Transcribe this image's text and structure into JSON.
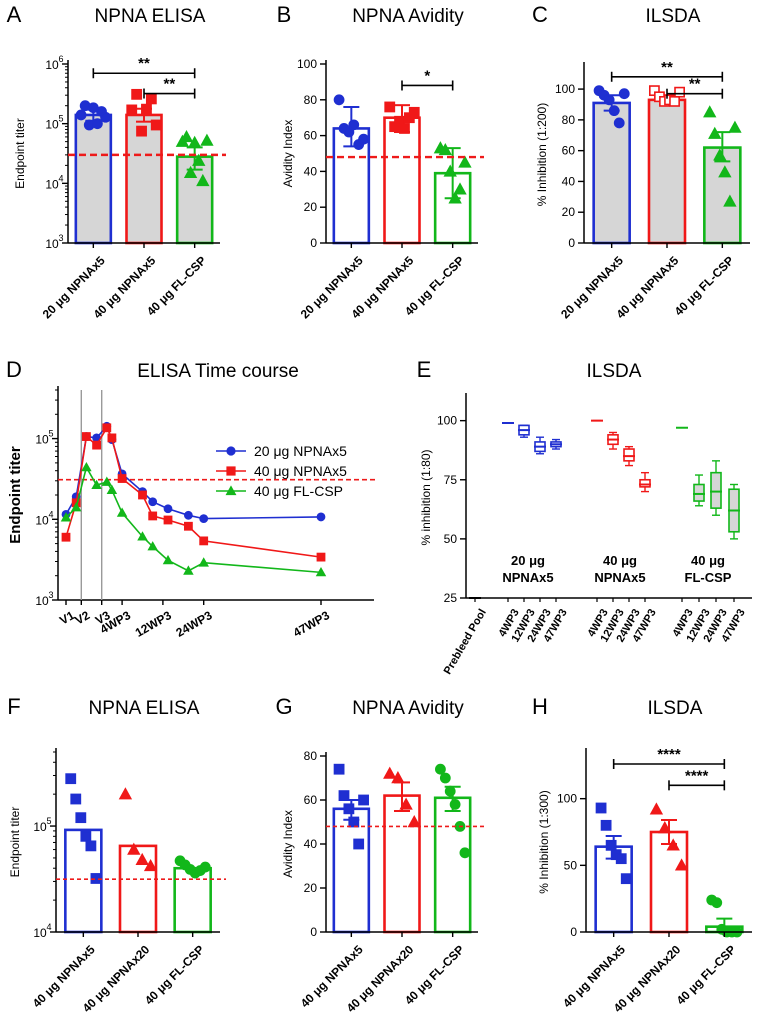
{
  "colors": {
    "blue": "#1f2fd1",
    "red": "#f01818",
    "green": "#12b71a",
    "gray": "#d6d6d6",
    "dash": "#ee1a1a",
    "vline": "#9a9a9a"
  },
  "chart_data": [
    {
      "panel_letter": "A",
      "title": "NPNA ELISA",
      "type": "bar",
      "scale": "log",
      "ylabel": "Endpoint titer",
      "ylim": [
        1000,
        1000000
      ],
      "tick_labels": [
        {
          "v": 1000,
          "b": "10",
          "e": "3"
        },
        {
          "v": 10000,
          "b": "10",
          "e": "4"
        },
        {
          "v": 100000,
          "b": "10",
          "e": "5"
        },
        {
          "v": 1000000,
          "b": "10",
          "e": "6"
        }
      ],
      "categories": [
        "20 μg NPNAx5",
        "40 μg NPNAx5",
        "40 μg FL-CSP"
      ],
      "series": [
        {
          "name": "20 μg NPNAx5",
          "color": "blue",
          "marker": "circle",
          "filled": true,
          "bar_fill": "gray",
          "value": 140000,
          "err": [
            112000,
            172000
          ],
          "points": [
            140000,
            200000,
            95000,
            185000,
            100000,
            160000,
            128000
          ]
        },
        {
          "name": "40 μg NPNAx5",
          "color": "red",
          "marker": "square",
          "filled": true,
          "bar_fill": "gray",
          "value": 140000,
          "err": [
            108000,
            178000
          ],
          "points": [
            170000,
            310000,
            75000,
            175000,
            260000,
            95000
          ]
        },
        {
          "name": "40 μg FL-CSP",
          "color": "green",
          "marker": "triangle",
          "filled": true,
          "bar_fill": "gray",
          "value": 28000,
          "err": [
            17000,
            40000
          ],
          "points": [
            50000,
            60000,
            15000,
            48000,
            24000,
            11000,
            52000
          ]
        }
      ],
      "reference_line": 30000,
      "significance": [
        {
          "from": 0,
          "to": 2,
          "label": "**",
          "y": 700000
        },
        {
          "from": 1,
          "to": 2,
          "label": "**",
          "y": 320000
        }
      ]
    },
    {
      "panel_letter": "B",
      "title": "NPNA Avidity",
      "type": "bar",
      "scale": "linear",
      "ylabel": "Avidity Index",
      "ylim": [
        0,
        100
      ],
      "yticks": [
        0,
        20,
        40,
        60,
        80,
        100
      ],
      "categories": [
        "20 μg NPNAx5",
        "40 μg NPNAx5",
        "40 μg FL-CSP"
      ],
      "series": [
        {
          "name": "20 μg NPNAx5",
          "color": "blue",
          "marker": "circle",
          "filled": true,
          "bar_fill": "white",
          "value": 64,
          "err": [
            54,
            76
          ],
          "points": [
            80,
            64,
            62,
            66,
            55,
            58
          ]
        },
        {
          "name": "40 μg NPNAx5",
          "color": "red",
          "marker": "square",
          "filled": true,
          "bar_fill": "white",
          "value": 70,
          "err": [
            62,
            77
          ],
          "points": [
            76,
            65,
            68,
            64,
            70,
            73
          ]
        },
        {
          "name": "40 μg FL-CSP",
          "color": "green",
          "marker": "triangle",
          "filled": true,
          "bar_fill": "white",
          "value": 39,
          "err": [
            25,
            53
          ],
          "points": [
            53,
            52,
            40,
            25,
            30,
            45
          ]
        }
      ],
      "reference_line": 48,
      "significance": [
        {
          "from": 1,
          "to": 2,
          "label": "*",
          "y": 88
        }
      ]
    },
    {
      "panel_letter": "C",
      "title": "ILSDA",
      "type": "bar",
      "scale": "linear",
      "ylabel": "% Inhibition (1:200)",
      "ylim": [
        0,
        115
      ],
      "yticks": [
        0,
        20,
        40,
        60,
        80,
        100
      ],
      "categories": [
        "20 μg NPNAx5",
        "40 μg NPNAx5",
        "40 μg FL-CSP"
      ],
      "series": [
        {
          "name": "20 μg NPNAx5",
          "color": "blue",
          "marker": "circle",
          "filled": true,
          "bar_fill": "gray",
          "value": 91,
          "err": [
            86,
            96
          ],
          "points": [
            99,
            96,
            93,
            86,
            78,
            97
          ]
        },
        {
          "name": "40 μg NPNAx5",
          "color": "red",
          "marker": "square",
          "filled": false,
          "bar_fill": "gray",
          "value": 93,
          "err": [
            90,
            96
          ],
          "points": [
            99,
            95,
            92,
            93,
            92,
            98
          ]
        },
        {
          "name": "40 μg FL-CSP",
          "color": "green",
          "marker": "triangle",
          "filled": true,
          "bar_fill": "gray",
          "value": 62,
          "err": [
            53,
            72
          ],
          "points": [
            85,
            71,
            57,
            46,
            27,
            75
          ]
        }
      ],
      "significance": [
        {
          "from": 0,
          "to": 2,
          "label": "**",
          "y": 108
        },
        {
          "from": 1,
          "to": 2,
          "label": "**",
          "y": 97
        }
      ]
    },
    {
      "panel_letter": "D",
      "title": "ELISA Time course",
      "type": "line",
      "scale": "log",
      "ylabel": "Endpoint titer",
      "ylim": [
        1000,
        400000
      ],
      "tick_labels": [
        {
          "v": 1000,
          "b": "10",
          "e": "3"
        },
        {
          "v": 10000,
          "b": "10",
          "e": "4"
        },
        {
          "v": 100000,
          "b": "10",
          "e": "5"
        }
      ],
      "xlim": [
        0,
        60
      ],
      "xticks": [
        {
          "x": 0,
          "label": "V1"
        },
        {
          "x": 3,
          "label": "V2"
        },
        {
          "x": 7,
          "label": "V3"
        },
        {
          "x": 11,
          "label": "4WP3"
        },
        {
          "x": 19,
          "label": "12WP3"
        },
        {
          "x": 27,
          "label": "24WP3"
        },
        {
          "x": 50,
          "label": "47WP3"
        }
      ],
      "vlines": [
        3,
        7
      ],
      "reference_line": 31000,
      "legend": [
        "20 μg NPNAx5",
        "40 μg NPNAx5",
        "40 μg FL-CSP"
      ],
      "series": [
        {
          "name": "20 μg NPNAx5",
          "color": "blue",
          "marker": "circle",
          "x": [
            0,
            2,
            4,
            6,
            8,
            9,
            11,
            15,
            17,
            20,
            24,
            27,
            50
          ],
          "y": [
            11500,
            19000,
            106000,
            102000,
            142000,
            97000,
            36500,
            22000,
            16500,
            13500,
            11200,
            10200,
            10700
          ]
        },
        {
          "name": "40 μg NPNAx5",
          "color": "red",
          "marker": "square",
          "x": [
            0,
            2,
            4,
            6,
            8,
            9,
            11,
            15,
            17,
            20,
            24,
            27,
            50
          ],
          "y": [
            6000,
            16000,
            106000,
            83000,
            136000,
            102000,
            32000,
            20000,
            11000,
            9800,
            8200,
            5400,
            3400
          ]
        },
        {
          "name": "40 μg FL-CSP",
          "color": "green",
          "marker": "triangle",
          "x": [
            0,
            2,
            4,
            6,
            8,
            9,
            11,
            15,
            17,
            20,
            24,
            27,
            50
          ],
          "y": [
            10500,
            14000,
            44000,
            26500,
            29000,
            23000,
            12000,
            6100,
            4600,
            3100,
            2300,
            2900,
            2200
          ]
        }
      ]
    },
    {
      "panel_letter": "E",
      "title": "ILSDA",
      "type": "box",
      "ylabel": "% inhibition (1:80)",
      "ylim": [
        25,
        110
      ],
      "yticks": [
        25,
        50,
        75,
        100
      ],
      "categories": [
        "Prebleed Pool",
        "4WP3",
        "12WP3",
        "24WP3",
        "47WP3",
        "4WP3",
        "12WP3",
        "24WP3",
        "47WP3",
        "4WP3",
        "12WP3",
        "24WP3",
        "47WP3"
      ],
      "group_labels": [
        {
          "line1": "20 μg",
          "line2": "NPNAx5"
        },
        {
          "line1": "40 μg",
          "line2": "NPNAx5"
        },
        {
          "line1": "40 μg",
          "line2": "FL-CSP"
        }
      ],
      "boxes": [
        {
          "x": 0,
          "color": "black",
          "min": 25,
          "q1": 25,
          "med": 25,
          "q3": 25,
          "max": 25
        },
        {
          "x": 1,
          "color": "blue",
          "min": 99,
          "q1": 99,
          "med": 99,
          "q3": 99,
          "max": 99
        },
        {
          "x": 2,
          "color": "blue",
          "min": 93,
          "q1": 94,
          "med": 96,
          "q3": 98,
          "max": 98
        },
        {
          "x": 3,
          "color": "blue",
          "min": 86,
          "q1": 87,
          "med": 89,
          "q3": 91,
          "max": 93
        },
        {
          "x": 4,
          "color": "blue",
          "min": 88,
          "q1": 89,
          "med": 90,
          "q3": 91,
          "max": 92
        },
        {
          "x": 5,
          "color": "red",
          "min": 100,
          "q1": 100,
          "med": 100,
          "q3": 100,
          "max": 100
        },
        {
          "x": 6,
          "color": "red",
          "min": 88,
          "q1": 90,
          "med": 92,
          "q3": 94,
          "max": 95
        },
        {
          "x": 7,
          "color": "red",
          "min": 81,
          "q1": 83,
          "med": 85,
          "q3": 88,
          "max": 89
        },
        {
          "x": 8,
          "color": "red",
          "min": 70,
          "q1": 72,
          "med": 73,
          "q3": 75,
          "max": 78
        },
        {
          "x": 9,
          "color": "green",
          "min": 97,
          "q1": 97,
          "med": 97,
          "q3": 97,
          "max": 97
        },
        {
          "x": 10,
          "color": "green",
          "min": 64,
          "q1": 66,
          "med": 69,
          "q3": 73,
          "max": 77
        },
        {
          "x": 11,
          "color": "green",
          "min": 60,
          "q1": 63,
          "med": 70,
          "q3": 78,
          "max": 83
        },
        {
          "x": 12,
          "color": "green",
          "min": 50,
          "q1": 53,
          "med": 62,
          "q3": 71,
          "max": 73
        }
      ]
    },
    {
      "panel_letter": "F",
      "title": "NPNA ELISA",
      "type": "bar",
      "scale": "log",
      "ylabel": "Endpoint titer",
      "ylim": [
        10000,
        500000
      ],
      "tick_labels": [
        {
          "v": 10000,
          "b": "10",
          "e": "4"
        },
        {
          "v": 100000,
          "b": "10",
          "e": "5"
        }
      ],
      "categories": [
        "40 μg NPNAx5",
        "40 μg NPNAx20",
        "40 μg FL-CSP"
      ],
      "series": [
        {
          "name": "40 μg NPNAx5",
          "color": "blue",
          "marker": "square",
          "filled": true,
          "bar_fill": "white",
          "value": 92000,
          "points": [
            280000,
            180000,
            120000,
            80000,
            65000,
            32000
          ]
        },
        {
          "name": "40 μg NPNAx20",
          "color": "red",
          "marker": "triangle",
          "filled": true,
          "bar_fill": "white",
          "value": 65000,
          "points": [
            200000,
            60000,
            48000,
            42000
          ]
        },
        {
          "name": "40 μg FL-CSP",
          "color": "green",
          "marker": "circle",
          "filled": true,
          "bar_fill": "white",
          "value": 40000,
          "points": [
            47000,
            43000,
            39000,
            36000,
            38000,
            41000
          ]
        }
      ],
      "reference_line": 31500
    },
    {
      "panel_letter": "G",
      "title": "NPNA Avidity",
      "type": "bar",
      "scale": "linear",
      "ylabel": "Avidity Index",
      "ylim": [
        0,
        80
      ],
      "yticks": [
        0,
        20,
        40,
        60,
        80
      ],
      "categories": [
        "40 μg NPNAx5",
        "40 μg NPNAx20",
        "40 μg FL-CSP"
      ],
      "series": [
        {
          "name": "40 μg NPNAx5",
          "color": "blue",
          "marker": "square",
          "filled": true,
          "bar_fill": "white",
          "value": 56,
          "err": [
            51,
            60
          ],
          "points": [
            74,
            62,
            56,
            50,
            40,
            60
          ]
        },
        {
          "name": "40 μg NPNAx20",
          "color": "red",
          "marker": "triangle",
          "filled": true,
          "bar_fill": "white",
          "value": 62,
          "err": [
            55,
            68
          ],
          "points": [
            72,
            70,
            58,
            50
          ]
        },
        {
          "name": "40 μg FL-CSP",
          "color": "green",
          "marker": "circle",
          "filled": true,
          "bar_fill": "white",
          "value": 61,
          "err": [
            55,
            66
          ],
          "points": [
            74,
            70,
            64,
            58,
            48,
            36
          ]
        }
      ],
      "reference_line": 48
    },
    {
      "panel_letter": "H",
      "title": "ILSDA",
      "type": "bar",
      "scale": "linear",
      "ylabel": "% Inhibition (1:300)",
      "ylim": [
        0,
        135
      ],
      "yticks": [
        0,
        50,
        100
      ],
      "categories": [
        "40 μg NPNAx5",
        "40 μg NPNAx20",
        "40 μg FL-CSP"
      ],
      "series": [
        {
          "name": "40 μg NPNAx5",
          "color": "blue",
          "marker": "square",
          "filled": true,
          "bar_fill": "white",
          "value": 64,
          "err": [
            55,
            72
          ],
          "points": [
            93,
            80,
            65,
            58,
            55,
            40
          ]
        },
        {
          "name": "40 μg NPNAx20",
          "color": "red",
          "marker": "triangle",
          "filled": true,
          "bar_fill": "white",
          "value": 75,
          "err": [
            66,
            84
          ],
          "points": [
            92,
            78,
            65,
            50
          ]
        },
        {
          "name": "40 μg FL-CSP",
          "color": "green",
          "marker": "circle",
          "filled": true,
          "bar_fill": "white",
          "value": 4,
          "err": [
            0,
            10
          ],
          "points": [
            24,
            22,
            2,
            0,
            0,
            0
          ]
        }
      ],
      "significance": [
        {
          "from": 0,
          "to": 2,
          "label": "****",
          "y": 126
        },
        {
          "from": 1,
          "to": 2,
          "label": "****",
          "y": 110
        }
      ]
    }
  ]
}
